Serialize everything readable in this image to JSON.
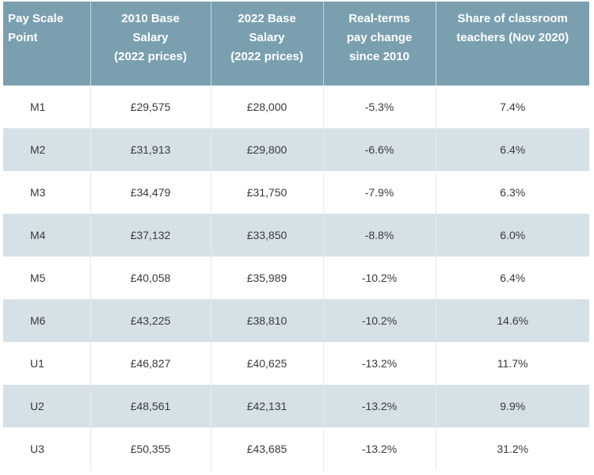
{
  "table": {
    "headers": [
      [
        "Pay Scale",
        "Point"
      ],
      [
        "2010 Base",
        "Salary",
        "(2022 prices)"
      ],
      [
        "2022 Base",
        "Salary",
        "(2022 prices)"
      ],
      [
        "Real-terms",
        "pay change",
        "since 2010"
      ],
      [
        "Share of classroom",
        "teachers (Nov 2020)"
      ]
    ],
    "rows": [
      [
        "M1",
        "£29,575",
        "£28,000",
        "-5.3%",
        "7.4%"
      ],
      [
        "M2",
        "£31,913",
        "£29,800",
        "-6.6%",
        "6.4%"
      ],
      [
        "M3",
        "£34,479",
        "£31,750",
        "-7.9%",
        "6.3%"
      ],
      [
        "M4",
        "£37,132",
        "£33,850",
        "-8.8%",
        "6.0%"
      ],
      [
        "M5",
        "£40,058",
        "£35,989",
        "-10.2%",
        "6.4%"
      ],
      [
        "M6",
        "£43,225",
        "£38,810",
        "-10.2%",
        "14.6%"
      ],
      [
        "U1",
        "£46,827",
        "£40,625",
        "-13.2%",
        "11.7%"
      ],
      [
        "U2",
        "£48,561",
        "£42,131",
        "-13.2%",
        "9.9%"
      ],
      [
        "U3",
        "£50,355",
        "£43,685",
        "-13.2%",
        "31.2%"
      ]
    ],
    "colors": {
      "header_bg": "#7aa0b0",
      "header_text": "#ffffff",
      "alt_row_bg": "#d6e1e7",
      "row_bg": "#ffffff"
    }
  }
}
